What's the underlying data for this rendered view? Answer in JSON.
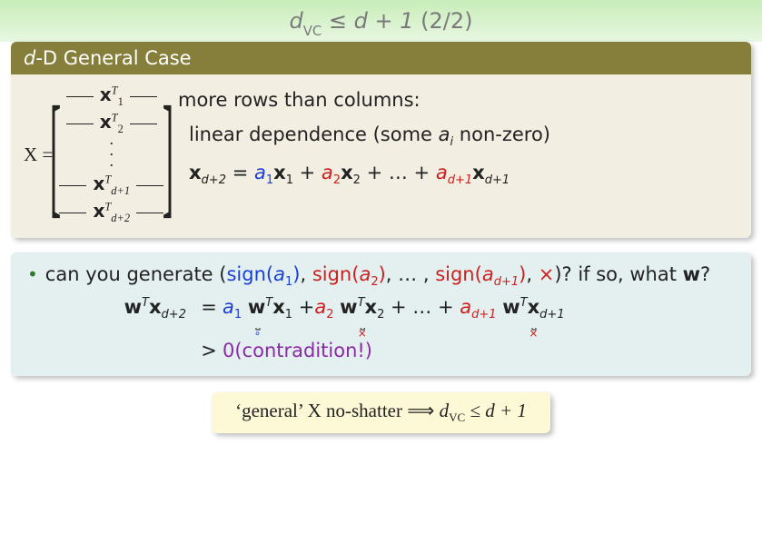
{
  "colors": {
    "title_grad_top": "#c8edb9",
    "title_grad_bottom": "#e8f7e2",
    "title_text": "#7a7a7a",
    "block1_header_bg": "#867e3b",
    "block1_header_text": "#ffffff",
    "block1_body_bg": "#f2eee2",
    "block2_bg": "#e4f0f0",
    "block3_bg": "#fdf8d6",
    "blue": "#1a3fd6",
    "red": "#cc1f1f",
    "purple": "#8a2aa6",
    "bullet": "#2e7a2e",
    "text": "#222222"
  },
  "title": {
    "lhs_var": "d",
    "lhs_sub": "VC",
    "rel": "≤",
    "rhs": "d + 1",
    "counter": "(2/2)"
  },
  "block1": {
    "header_pre": "d",
    "header_post": "-D General Case",
    "matrix": {
      "lhs": "X",
      "eq": "=",
      "rows": [
        {
          "pre": "— ",
          "x": "x",
          "sup": "T",
          "sub": "1",
          "post": " —"
        },
        {
          "pre": "— ",
          "x": "x",
          "sup": "T",
          "sub": "2",
          "post": " —"
        }
      ],
      "vdots": "⋮",
      "rows2": [
        {
          "pre": "— ",
          "x": "x",
          "sup": "T",
          "sub": "d+1",
          "post": " —"
        },
        {
          "pre": "— ",
          "x": "x",
          "sup": "T",
          "sub": "d+2",
          "post": " —"
        }
      ]
    },
    "right": {
      "line1": "more rows than columns:",
      "line2_a": "linear dependence (some ",
      "line2_ai": "a",
      "line2_ai_sub": "i",
      "line2_b": " non-zero)",
      "eqn": {
        "lhs_x": "x",
        "lhs_sub": "d+2",
        "eq": "=",
        "terms": [
          {
            "a": "a",
            "asub": "1",
            "x": "x",
            "xsub": "1",
            "color": "blue"
          },
          {
            "plus": " + ",
            "a": "a",
            "asub": "2",
            "x": "x",
            "xsub": "2",
            "color": "red"
          },
          {
            "plus": " + … + ",
            "a": "a",
            "asub": "d+1",
            "x": "x",
            "xsub": "d+1",
            "color": "red"
          }
        ]
      }
    }
  },
  "block2": {
    "bullet": {
      "pre": "can you generate (",
      "sign": "sign",
      "parts": [
        {
          "a": "a",
          "sub": "1",
          "color": "blue"
        },
        {
          "a": "a",
          "sub": "2",
          "color": "red"
        },
        {
          "a": "a",
          "sub": "d+1",
          "color": "red"
        }
      ],
      "sep1": ", ",
      "sep2": ", … , ",
      "tail_sep": ", ",
      "tail_sym": "×",
      "post": ")? if so, what ",
      "w": "w",
      "q": "?"
    },
    "eqn": {
      "lhs": {
        "w": "w",
        "sup": "T",
        "x": "x",
        "sub": "d+2"
      },
      "row1_op": "=",
      "terms": [
        {
          "a": "a",
          "asub": "1",
          "acolor": "blue",
          "w": "w",
          "wsup": "T",
          "x": "x",
          "xsub": "1",
          "mark": "∘",
          "mcolor": "blue"
        },
        {
          "plus": " +",
          "a": "a",
          "asub": "2",
          "acolor": "red",
          "w": "w",
          "wsup": "T",
          "x": "x",
          "xsub": "2",
          "mark": "×",
          "mcolor": "red"
        },
        {
          "plus": " + … + ",
          "a": "a",
          "asub": "d+1",
          "acolor": "red",
          "w": "w",
          "wsup": "T",
          "x": "x",
          "xsub": "d+1",
          "mark": "×",
          "mcolor": "red"
        }
      ],
      "row2_op": ">",
      "row2_text": "0(contradition!)"
    }
  },
  "block3": {
    "pre": "‘general’ ",
    "X": "X",
    "mid": " no-shatter ",
    "imp": "⟹",
    "d": "d",
    "sub": "VC",
    "rel": "≤",
    "rhs": "d + 1"
  }
}
